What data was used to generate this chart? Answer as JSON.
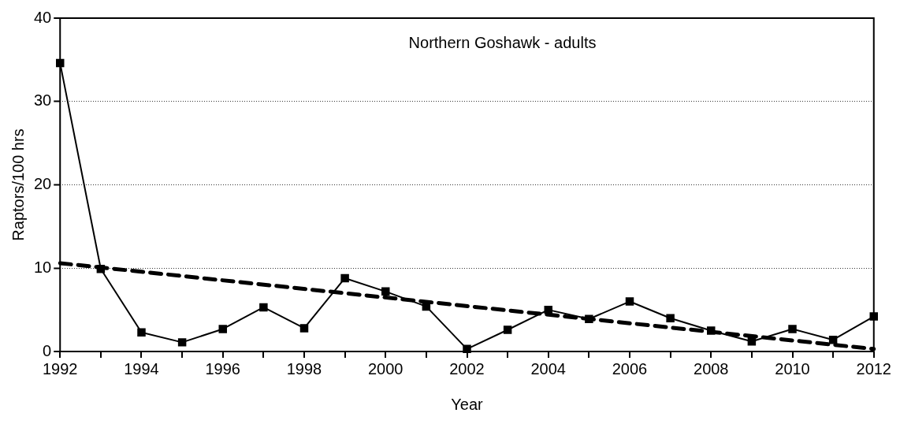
{
  "chart_data": {
    "type": "line",
    "title": "Northern Goshawk - adults",
    "xlabel": "Year",
    "ylabel": "Raptors/100 hrs",
    "x": [
      1992,
      1993,
      1994,
      1995,
      1996,
      1997,
      1998,
      1999,
      2000,
      2001,
      2002,
      2003,
      2004,
      2005,
      2006,
      2007,
      2008,
      2009,
      2010,
      2011,
      2012
    ],
    "series": [
      {
        "color": "#000000",
        "marker": "square",
        "line_style": "solid",
        "values": [
          34.6,
          9.9,
          2.3,
          1.1,
          2.7,
          5.3,
          2.8,
          8.8,
          7.2,
          5.4,
          0.3,
          2.6,
          5.0,
          3.9,
          6.0,
          4.0,
          2.5,
          1.2,
          2.7,
          1.4,
          4.2
        ]
      },
      {
        "color": "#000000",
        "marker": "none",
        "line_style": "dashed",
        "x": [
          1992,
          2012
        ],
        "values": [
          10.6,
          0.3
        ]
      }
    ],
    "xlim": [
      1992,
      2012
    ],
    "xticks": [
      1992,
      {
        "value": 1993,
        "label": null
      },
      1994,
      {
        "value": 1995,
        "label": null
      },
      1996,
      {
        "value": 1997,
        "label": null
      },
      1998,
      {
        "value": 1999,
        "label": null
      },
      2000,
      {
        "value": 2001,
        "label": null
      },
      2002,
      {
        "value": 2003,
        "label": null
      },
      2004,
      {
        "value": 2005,
        "label": null
      },
      2006,
      {
        "value": 2007,
        "label": null
      },
      2008,
      {
        "value": 2009,
        "label": null
      },
      2010,
      {
        "value": 2011,
        "label": null
      },
      2012
    ],
    "ylim": [
      0,
      40
    ],
    "yticks": [
      0,
      10,
      20,
      30,
      40
    ],
    "grid": "y",
    "legend": false
  }
}
